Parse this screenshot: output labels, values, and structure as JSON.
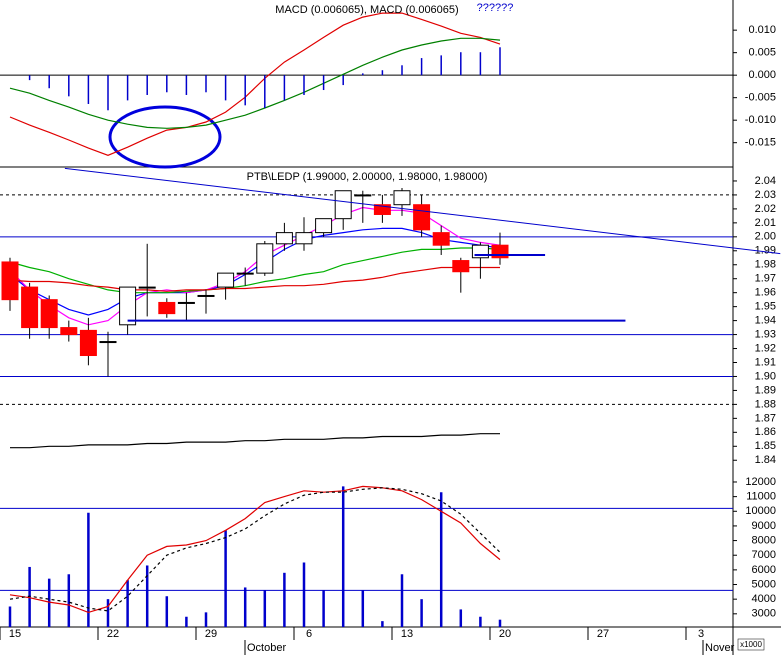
{
  "chart_data": [
    {
      "type": "line",
      "title": "MACD (0.006065), MACD (0.006065)",
      "title_extra": "??????",
      "ylim": [
        -0.0204,
        0.0167
      ],
      "yticks": [
        {
          "value": 0.01,
          "label": "0.010"
        },
        0.005,
        {
          "value": 0,
          "label": "0.000"
        },
        -0.005,
        {
          "value": -0.01,
          "label": "-0.010"
        },
        -0.015
      ],
      "hlines": [
        {
          "value": 0,
          "color": "#000000"
        }
      ],
      "series": [
        {
          "color": "#e00000",
          "values": [
            -0.0093,
            -0.0111,
            -0.0127,
            -0.0144,
            -0.0162,
            -0.0178,
            -0.016,
            -0.014,
            -0.0122,
            -0.0116,
            -0.0104,
            -0.0082,
            -0.0049,
            -0.0007,
            0.0029,
            0.0056,
            0.0084,
            0.0111,
            0.0129,
            0.0138,
            0.0138,
            0.0124,
            0.0109,
            0.0093,
            0.0084,
            0.0069
          ]
        },
        {
          "color": "#008000",
          "values": [
            -0.0029,
            -0.004,
            -0.0056,
            -0.0071,
            -0.0087,
            -0.01,
            -0.0109,
            -0.0116,
            -0.0118,
            -0.0116,
            -0.0111,
            -0.01,
            -0.0089,
            -0.0073,
            -0.0056,
            -0.0038,
            -0.0018,
            0.0002,
            0.0022,
            0.004,
            0.0056,
            0.0067,
            0.0076,
            0.0082,
            0.0082,
            0.0078
          ]
        },
        {
          "type": "bar",
          "color": "#0000cc",
          "values": [
            0,
            -0.0011,
            -0.0029,
            -0.0047,
            -0.0064,
            -0.0078,
            -0.0056,
            -0.0044,
            -0.0038,
            -0.0044,
            -0.0038,
            -0.0056,
            -0.0067,
            -0.0073,
            -0.0056,
            -0.0044,
            -0.0033,
            -0.0022,
            0.0004,
            0.0011,
            0.0022,
            0.0038,
            0.0044,
            0.0051,
            0.0051,
            0.0062
          ]
        }
      ]
    },
    {
      "type": "candlestick",
      "title": "PTB\\LEDP (1.99000, 2.00000, 1.98000, 1.98000)",
      "ylim": [
        1.828,
        2.05
      ],
      "yticks": [
        2.04,
        2.03,
        2.02,
        2.01,
        {
          "value": 2,
          "label": "2.00"
        },
        1.99,
        1.98,
        1.97,
        1.96,
        1.95,
        1.94,
        1.93,
        1.92,
        1.91,
        {
          "value": 1.9,
          "label": "1.90"
        },
        1.89,
        1.88,
        1.87,
        1.86,
        1.85,
        1.84
      ],
      "open": [
        1.982,
        1.964,
        1.955,
        1.935,
        1.933,
        1.925,
        1.937,
        1.964,
        1.953,
        1.953,
        1.958,
        1.964,
        1.974,
        1.974,
        1.995,
        1.995,
        2.003,
        2.013,
        2.03,
        2.023,
        2.023,
        2.023,
        2.003,
        1.983,
        1.985,
        1.994
      ],
      "high": [
        1.985,
        1.967,
        1.958,
        1.94,
        1.942,
        1.932,
        1.964,
        1.995,
        1.956,
        1.96,
        1.962,
        1.974,
        1.978,
        1.997,
        2.01,
        2.014,
        2.013,
        2.033,
        2.033,
        2.03,
        2.035,
        2.03,
        2.008,
        1.985,
        1.996,
        2.003
      ],
      "low": [
        1.947,
        1.927,
        1.927,
        1.925,
        1.908,
        1.9,
        1.93,
        1.943,
        1.942,
        1.94,
        1.945,
        1.955,
        1.965,
        1.972,
        1.99,
        1.99,
        2.0,
        2.005,
        2.01,
        2.01,
        2.015,
        2.0,
        1.987,
        1.96,
        1.97,
        1.98
      ],
      "close": [
        1.955,
        1.935,
        1.935,
        1.93,
        1.915,
        1.925,
        1.964,
        1.964,
        1.945,
        1.953,
        1.958,
        1.974,
        1.974,
        1.995,
        2.003,
        2.003,
        2.013,
        2.033,
        2.03,
        2.016,
        2.033,
        2.005,
        1.994,
        1.975,
        1.994,
        1.985
      ],
      "up_color": "#ffffff",
      "down_color": "#ff0000",
      "hlines": [
        {
          "value": 2.03,
          "color": "#000000",
          "dash": true
        },
        {
          "value": 2,
          "color": "#0000cc"
        },
        {
          "value": 1.93,
          "color": "#0000cc"
        },
        {
          "value": 1.9,
          "color": "#0000cc"
        },
        {
          "value": 1.88,
          "color": "#000000",
          "dash": true
        }
      ],
      "segments": [
        {
          "x": [
            2.8,
            39.3
          ],
          "y": [
            2.049,
            1.988
          ],
          "color": "#0000cc",
          "width": 1
        },
        {
          "x": [
            6,
            31.4
          ],
          "y": [
            1.94,
            1.94
          ],
          "color": "#0000cc",
          "width": 2
        },
        {
          "x": [
            23.7,
            27.3
          ],
          "y": [
            1.987,
            1.987
          ],
          "color": "#0000cc",
          "width": 2
        }
      ],
      "series": [
        {
          "color": "#0000ff",
          "values": [
            1.973,
            1.962,
            1.955,
            1.948,
            1.944,
            1.948,
            1.956,
            1.96,
            1.96,
            1.96,
            1.962,
            1.965,
            1.973,
            1.982,
            1.991,
            1.998,
            2.001,
            2.003,
            2.005,
            2.006,
            2.006,
            2.003,
            1.998,
            1.996,
            1.994,
            1.992
          ]
        },
        {
          "color": "#ff00ff",
          "values": [
            1.976,
            1.962,
            1.951,
            1.942,
            1.937,
            1.94,
            1.951,
            1.96,
            1.962,
            1.96,
            1.962,
            1.967,
            1.975,
            1.987,
            1.994,
            2.001,
            2.008,
            2.016,
            2.021,
            2.019,
            2.019,
            2.017,
            2.008,
            1.999,
            1.996,
            1.994
          ]
        },
        {
          "color": "#00b000",
          "values": [
            1.982,
            1.978,
            1.975,
            1.97,
            1.966,
            1.962,
            1.96,
            1.96,
            1.96,
            1.961,
            1.962,
            1.963,
            1.965,
            1.968,
            1.97,
            1.973,
            1.975,
            1.98,
            1.983,
            1.986,
            1.989,
            1.991,
            1.991,
            1.992,
            1.992,
            1.991
          ]
        },
        {
          "color": "#e00000",
          "values": [
            1.969,
            1.968,
            1.968,
            1.967,
            1.965,
            1.964,
            1.962,
            1.962,
            1.961,
            1.962,
            1.962,
            1.963,
            1.963,
            1.964,
            1.965,
            1.965,
            1.966,
            1.968,
            1.969,
            1.971,
            1.974,
            1.976,
            1.978,
            1.978,
            1.978,
            1.978
          ]
        },
        {
          "color": "#000000",
          "values": [
            1.849,
            1.849,
            1.85,
            1.85,
            1.851,
            1.851,
            1.851,
            1.852,
            1.852,
            1.853,
            1.853,
            1.853,
            1.854,
            1.854,
            1.855,
            1.855,
            1.855,
            1.856,
            1.856,
            1.857,
            1.857,
            1.857,
            1.858,
            1.858,
            1.859,
            1.859
          ]
        }
      ]
    },
    {
      "type": "bar",
      "ylim": [
        2100,
        12340
      ],
      "yticks": [
        12000,
        11000,
        10000,
        9000,
        8000,
        7000,
        6000,
        5000,
        4000,
        3000
      ],
      "unit_label": "x1000",
      "color": "#0000cc",
      "values": [
        3500,
        6200,
        5400,
        5700,
        9900,
        4000,
        5300,
        6300,
        4200,
        2800,
        3100,
        8700,
        4800,
        4600,
        5800,
        6500,
        4600,
        11700,
        4600,
        2500,
        5700,
        4000,
        11300,
        3300,
        2800,
        2600
      ],
      "hlines": [
        {
          "value": 10200,
          "color": "#0000cc"
        },
        {
          "value": 4600,
          "color": "#0000cc"
        }
      ],
      "series": [
        {
          "color": "#e00000",
          "values": [
            4300,
            4100,
            3800,
            3600,
            3100,
            3500,
            5300,
            7000,
            7600,
            7700,
            8000,
            8700,
            9500,
            10600,
            11000,
            11400,
            11300,
            11400,
            11700,
            11600,
            11400,
            10800,
            10000,
            9200,
            7800,
            6700
          ]
        },
        {
          "color": "#000000",
          "dash": true,
          "values": [
            4000,
            4200,
            4000,
            3800,
            3400,
            3200,
            4200,
            5600,
            7000,
            7500,
            7800,
            8200,
            8800,
            9700,
            10500,
            11100,
            11300,
            11300,
            11500,
            11600,
            11500,
            11200,
            10700,
            9800,
            8500,
            7200
          ]
        }
      ],
      "week_labels": [
        "15",
        "22",
        "29",
        "6",
        "13",
        "20",
        "27",
        "3"
      ],
      "month_labels": [
        "October",
        "Nover"
      ]
    }
  ]
}
